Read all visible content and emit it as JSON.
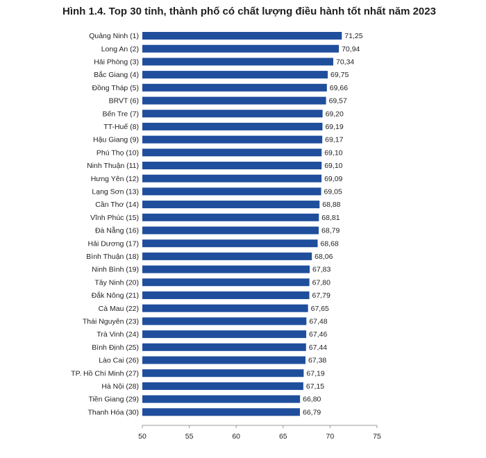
{
  "chart_data": {
    "type": "bar",
    "orientation": "horizontal",
    "title": "Hình 1.4. Top 30 tỉnh, thành phố có chất lượng điều hành tốt nhất năm 2023",
    "categories": [
      "Quảng Ninh (1)",
      "Long An (2)",
      "Hải Phòng (3)",
      "Bắc Giang (4)",
      "Đồng Tháp (5)",
      "BRVT (6)",
      "Bến Tre (7)",
      "TT-Huế (8)",
      "Hậu Giang (9)",
      "Phú Thọ (10)",
      "Ninh Thuận (11)",
      "Hưng Yên (12)",
      "Lạng Sơn (13)",
      "Cần Thơ (14)",
      "Vĩnh Phúc (15)",
      "Đà Nẵng (16)",
      "Hải Dương (17)",
      "Bình Thuận (18)",
      "Ninh Bình (19)",
      "Tây Ninh (20)",
      "Đắk Nông (21)",
      "Cà Mau (22)",
      "Thái Nguyên (23)",
      "Trà Vinh (24)",
      "Bình Định (25)",
      "Lào Cai (26)",
      "TP. Hồ Chí Minh (27)",
      "Hà Nội (28)",
      "Tiền Giang (29)",
      "Thanh Hóa (30)"
    ],
    "values": [
      71.25,
      70.94,
      70.34,
      69.75,
      69.66,
      69.57,
      69.2,
      69.19,
      69.17,
      69.1,
      69.1,
      69.09,
      69.05,
      68.88,
      68.81,
      68.79,
      68.68,
      68.06,
      67.83,
      67.8,
      67.79,
      67.65,
      67.48,
      67.46,
      67.44,
      67.38,
      67.19,
      67.15,
      66.8,
      66.79
    ],
    "value_labels": [
      "71,25",
      "70,94",
      "70,34",
      "69,75",
      "69,66",
      "69,57",
      "69,20",
      "69,19",
      "69,17",
      "69,10",
      "69,10",
      "69,09",
      "69,05",
      "68,88",
      "68,81",
      "68,79",
      "68,68",
      "68,06",
      "67,83",
      "67,80",
      "67,79",
      "67,65",
      "67,48",
      "67,46",
      "67,44",
      "67,38",
      "67,19",
      "67,15",
      "66,80",
      "66,79"
    ],
    "xlim": [
      50,
      75
    ],
    "xticks": [
      "50",
      "55",
      "60",
      "65",
      "70",
      "75"
    ],
    "xtick_values": [
      50,
      55,
      60,
      65,
      70,
      75
    ],
    "grid": false,
    "bar_color": "#1f4e9c"
  }
}
